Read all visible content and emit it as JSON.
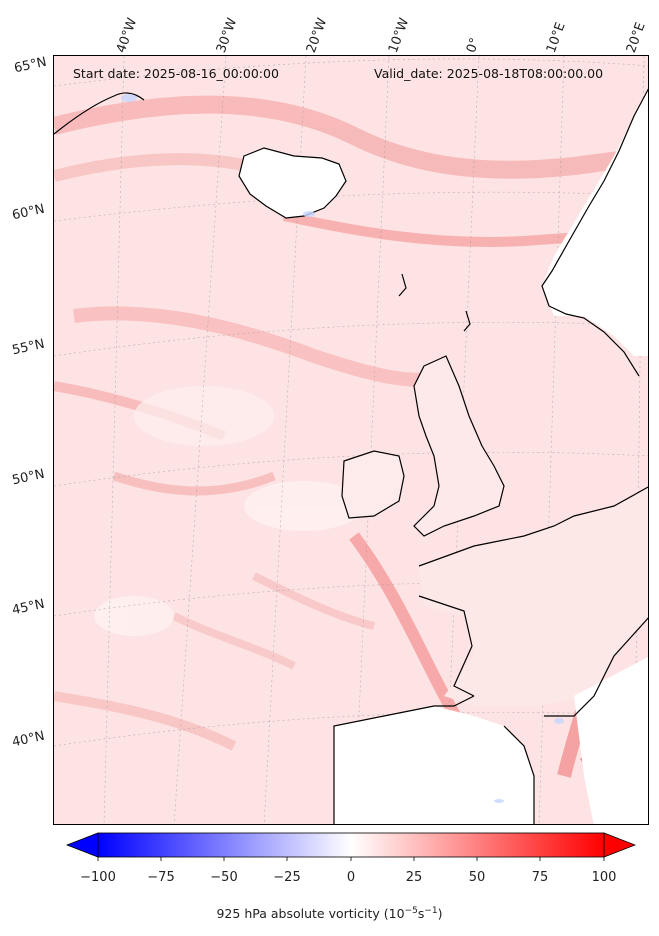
{
  "header": {
    "start_date": "Start date: 2025-08-16_00:00:00",
    "valid_date": "Valid_date: 2025-08-18T08:00:00.00"
  },
  "lon_labels": [
    "40°W",
    "30°W",
    "20°W",
    "10°W",
    "0°",
    "10°E",
    "20°E"
  ],
  "lat_labels": [
    "65°N",
    "60°N",
    "55°N",
    "50°N",
    "45°N",
    "40°N"
  ],
  "colorbar": {
    "title": "925 hPa absolute vorticity (10",
    "title_exp1": "−5",
    "title_mid": "s",
    "title_exp2": "−1",
    "title_end": ")",
    "ticks": [
      "−100",
      "−75",
      "−50",
      "−25",
      "0",
      "25",
      "50",
      "75",
      "100"
    ],
    "min": -100,
    "max": 100,
    "colormap": "bwr",
    "extend": "both"
  },
  "colors": {
    "negative": "#0000ff",
    "neutral": "#ffffff",
    "positive": "#ff0000",
    "background_field": "#fde3e3",
    "coastline": "#000000"
  }
}
